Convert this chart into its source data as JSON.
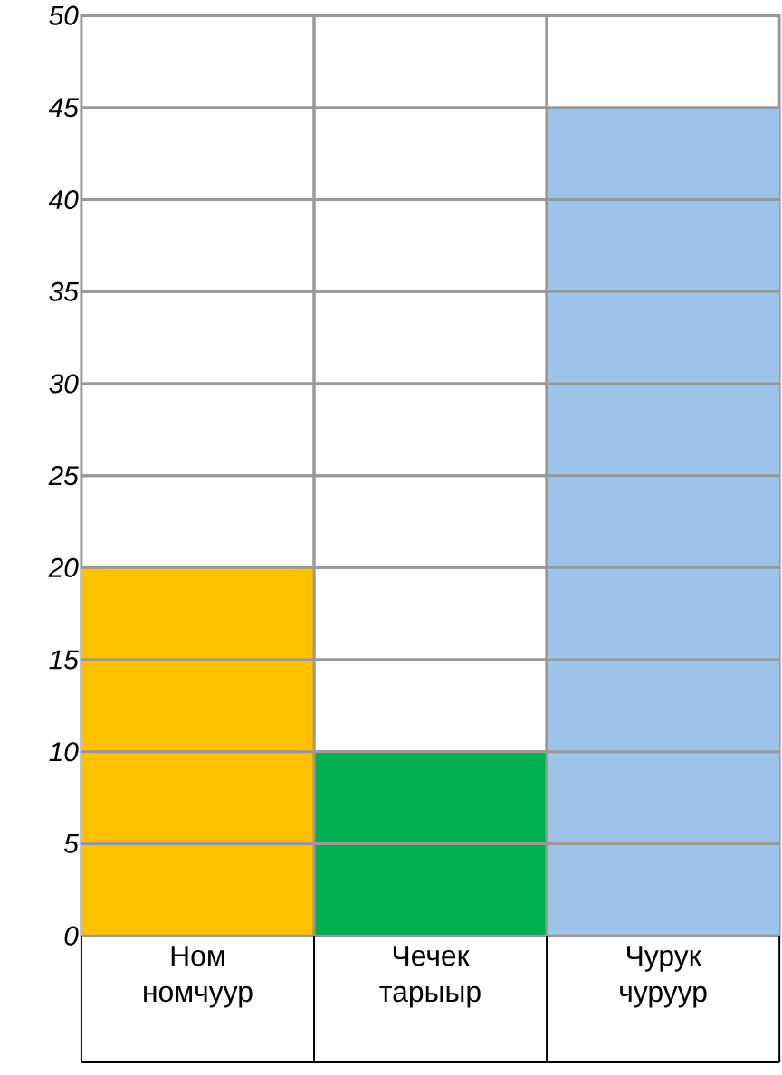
{
  "chart_data": {
    "type": "bar",
    "categories": [
      "Ном номчуур",
      "Чечек тарыыр",
      "Чурук чуруур"
    ],
    "values": [
      20,
      10,
      45
    ],
    "colors": [
      "#ffc000",
      "#00b050",
      "#9dc3e6"
    ],
    "ylim": [
      0,
      50
    ],
    "yticks": [
      0,
      5,
      10,
      15,
      20,
      25,
      30,
      35,
      40,
      45,
      50
    ],
    "grid": true
  }
}
